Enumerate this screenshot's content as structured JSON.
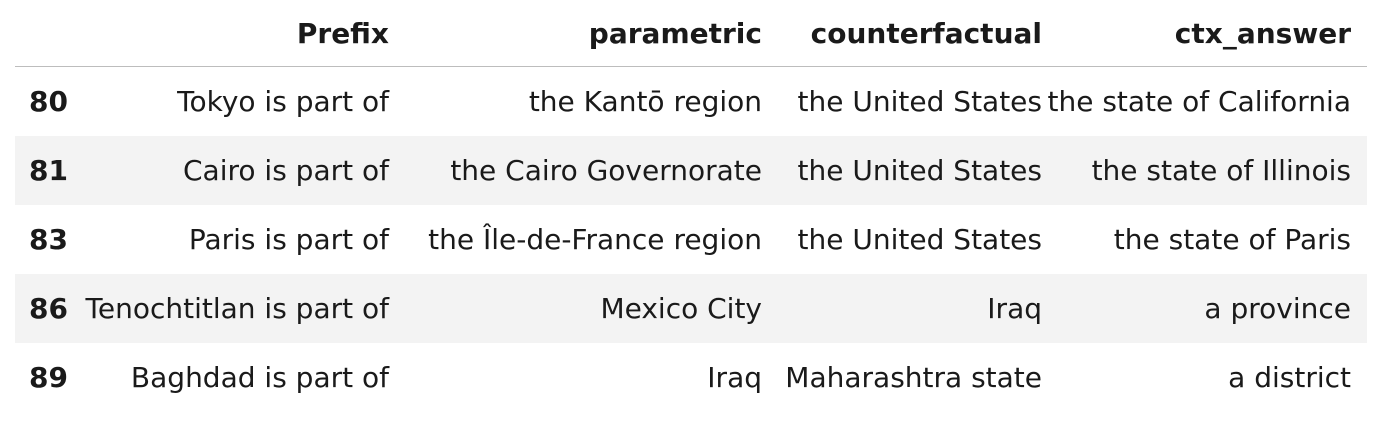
{
  "table": {
    "index_header": "",
    "columns": [
      "Prefix",
      "parametric",
      "counterfactual",
      "ctx_answer"
    ],
    "rows": [
      {
        "index": "80",
        "prefix": "Tokyo is part of",
        "parametric": "the Kantō region",
        "counterfactual": "the United States",
        "ctx_answer": "the state of California"
      },
      {
        "index": "81",
        "prefix": "Cairo is part of",
        "parametric": "the Cairo Governorate",
        "counterfactual": "the United States",
        "ctx_answer": "the state of Illinois"
      },
      {
        "index": "83",
        "prefix": "Paris is part of",
        "parametric": "the Île-de-France region",
        "counterfactual": "the United States",
        "ctx_answer": "the state of Paris"
      },
      {
        "index": "86",
        "prefix": "Tenochtitlan is part of",
        "parametric": "Mexico City",
        "counterfactual": "Iraq",
        "ctx_answer": "a province"
      },
      {
        "index": "89",
        "prefix": "Baghdad is part of",
        "parametric": "Iraq",
        "counterfactual": "Maharashtra state",
        "ctx_answer": "a district"
      }
    ]
  }
}
